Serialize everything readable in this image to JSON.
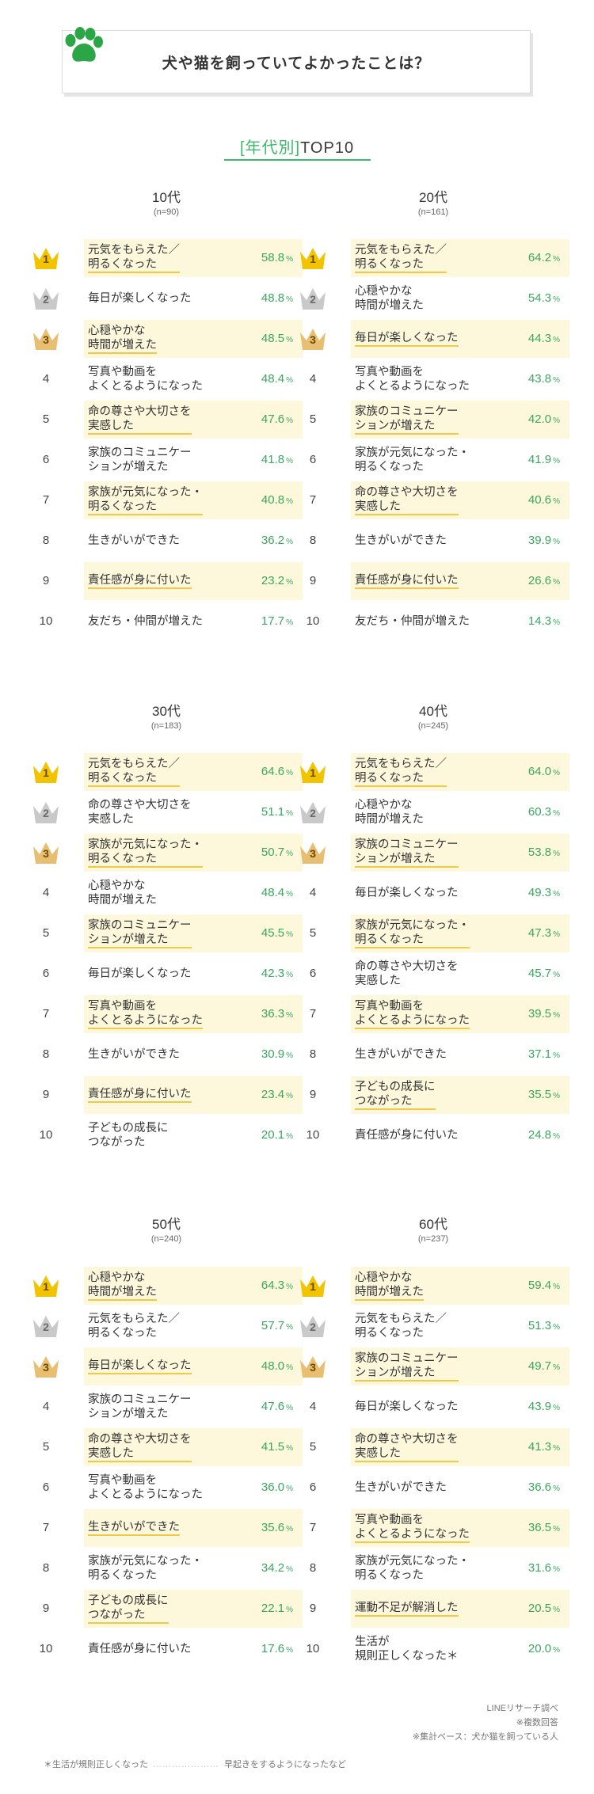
{
  "header": {
    "title": "犬や猫を飼っていてよかったことは？"
  },
  "section": {
    "open": "[",
    "accent": "年代別",
    "close": "]",
    "rest": "TOP10"
  },
  "chart_data": [
    {
      "type": "bar",
      "age": "10代",
      "n": "(n=90)",
      "ranks": [
        "1",
        "2",
        "3",
        "4",
        "5",
        "6",
        "7",
        "8",
        "9",
        "10"
      ],
      "categories": [
        "元気をもらえた／\n明るくなった",
        "毎日が楽しくなった",
        "心穏やかな\n時間が増えた",
        "写真や動画を\nよくとるようになった",
        "命の尊さや大切さを\n実感した",
        "家族のコミュニケー\nションが増えた",
        "家族が元気になった・\n明るくなった",
        "生きがいができた",
        "責任感が身に付いた",
        "友だち・仲間が増えた"
      ],
      "values": [
        58.8,
        48.8,
        48.5,
        48.4,
        47.6,
        41.8,
        40.8,
        36.2,
        23.2,
        17.7
      ],
      "unit": "%"
    },
    {
      "type": "bar",
      "age": "20代",
      "n": "(n=161)",
      "ranks": [
        "1",
        "2",
        "3",
        "4",
        "5",
        "6",
        "7",
        "8",
        "9",
        "10"
      ],
      "categories": [
        "元気をもらえた／\n明るくなった",
        "心穏やかな\n時間が増えた",
        "毎日が楽しくなった",
        "写真や動画を\nよくとるようになった",
        "家族のコミュニケー\nションが増えた",
        "家族が元気になった・\n明るくなった",
        "命の尊さや大切さを\n実感した",
        "生きがいができた",
        "責任感が身に付いた",
        "友だち・仲間が増えた"
      ],
      "values": [
        64.2,
        54.3,
        44.3,
        43.8,
        42.0,
        41.9,
        40.6,
        39.9,
        26.6,
        14.3
      ],
      "unit": "%"
    },
    {
      "type": "bar",
      "age": "30代",
      "n": "(n=183)",
      "ranks": [
        "1",
        "2",
        "3",
        "4",
        "5",
        "6",
        "7",
        "8",
        "9",
        "10"
      ],
      "categories": [
        "元気をもらえた／\n明るくなった",
        "命の尊さや大切さを\n実感した",
        "家族が元気になった・\n明るくなった",
        "心穏やかな\n時間が増えた",
        "家族のコミュニケー\nションが増えた",
        "毎日が楽しくなった",
        "写真や動画を\nよくとるようになった",
        "生きがいができた",
        "責任感が身に付いた",
        "子どもの成長に\nつながった"
      ],
      "values": [
        64.6,
        51.1,
        50.7,
        48.4,
        45.5,
        42.3,
        36.3,
        30.9,
        23.4,
        20.1
      ],
      "unit": "%"
    },
    {
      "type": "bar",
      "age": "40代",
      "n": "(n=245)",
      "ranks": [
        "1",
        "2",
        "3",
        "4",
        "5",
        "6",
        "7",
        "8",
        "9",
        "10"
      ],
      "categories": [
        "元気をもらえた／\n明るくなった",
        "心穏やかな\n時間が増えた",
        "家族のコミュニケー\nションが増えた",
        "毎日が楽しくなった",
        "家族が元気になった・\n明るくなった",
        "命の尊さや大切さを\n実感した",
        "写真や動画を\nよくとるようになった",
        "生きがいができた",
        "子どもの成長に\nつながった",
        "責任感が身に付いた"
      ],
      "values": [
        64.0,
        60.3,
        53.8,
        49.3,
        47.3,
        45.7,
        39.5,
        37.1,
        35.5,
        24.8
      ],
      "unit": "%"
    },
    {
      "type": "bar",
      "age": "50代",
      "n": "(n=240)",
      "ranks": [
        "1",
        "2",
        "3",
        "4",
        "5",
        "6",
        "7",
        "8",
        "9",
        "10"
      ],
      "categories": [
        "心穏やかな\n時間が増えた",
        "元気をもらえた／\n明るくなった",
        "毎日が楽しくなった",
        "家族のコミュニケー\nションが増えた",
        "命の尊さや大切さを\n実感した",
        "写真や動画を\nよくとるようになった",
        "生きがいができた",
        "家族が元気になった・\n明るくなった",
        "子どもの成長に\nつながった",
        "責任感が身に付いた"
      ],
      "values": [
        64.3,
        57.7,
        48.0,
        47.6,
        41.5,
        36.0,
        35.6,
        34.2,
        22.1,
        17.6
      ],
      "unit": "%"
    },
    {
      "type": "bar",
      "age": "60代",
      "n": "(n=237)",
      "ranks": [
        "1",
        "2",
        "3",
        "4",
        "5",
        "6",
        "7",
        "8",
        "9",
        "10"
      ],
      "categories": [
        "心穏やかな\n時間が増えた",
        "元気をもらえた／\n明るくなった",
        "家族のコミュニケー\nションが増えた",
        "毎日が楽しくなった",
        "命の尊さや大切さを\n実感した",
        "生きがいができた",
        "写真や動画を\nよくとるようになった",
        "家族が元気になった・\n明るくなった",
        "運動不足が解消した",
        "生活が\n規則正しくなった＊"
      ],
      "values": [
        59.4,
        51.3,
        49.7,
        43.9,
        41.3,
        36.6,
        36.5,
        31.6,
        20.5,
        20.0
      ],
      "unit": "%"
    }
  ],
  "source": {
    "line1": "LINEリサーチ調べ",
    "line2": "※複数回答",
    "line3": "※集計ベース：犬か猫を飼っている人"
  },
  "footnote": {
    "term": "＊生活が規則正しくなった",
    "dots": "…………………",
    "desc": "早起きをするようになったなど"
  },
  "colors": {
    "accent": "#3cb96b",
    "row_bg": "#fdf8dc",
    "gold": "#f2c400",
    "silver": "#c9c9c9",
    "bronze": "#e8be72"
  }
}
